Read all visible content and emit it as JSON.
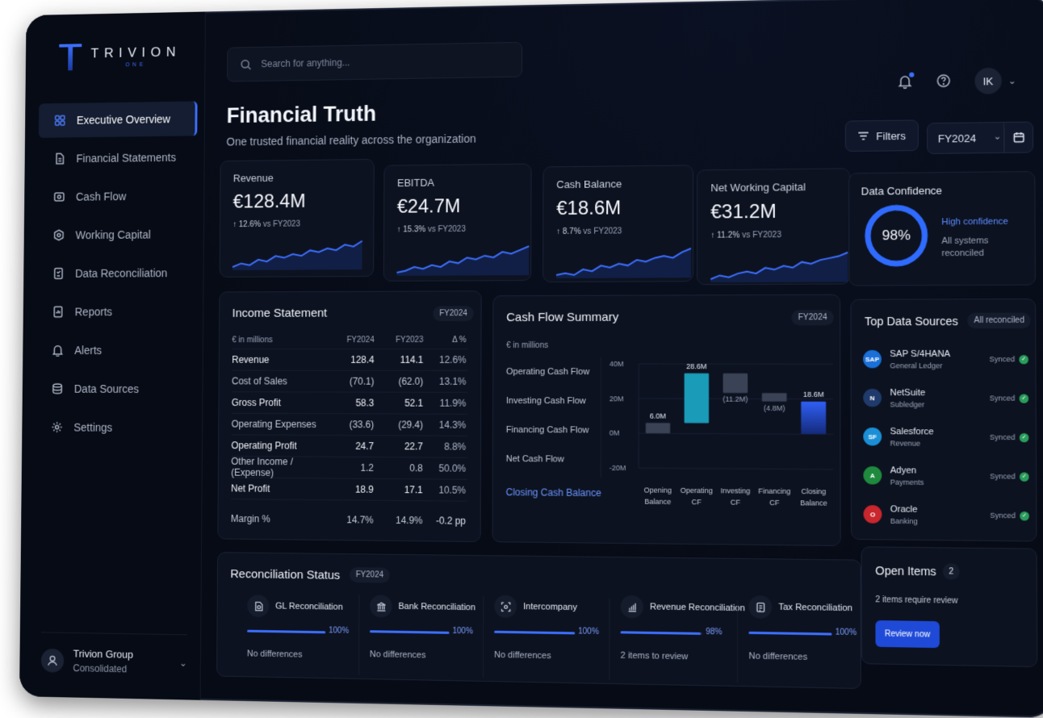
{
  "brand": {
    "name": "TRIVION",
    "sub": "ONE"
  },
  "nav": [
    {
      "label": "Executive Overview",
      "icon": "grid-icon",
      "active": true
    },
    {
      "label": "Financial Statements",
      "icon": "document-icon"
    },
    {
      "label": "Cash Flow",
      "icon": "cash-icon"
    },
    {
      "label": "Working Capital",
      "icon": "gear-circle-icon"
    },
    {
      "label": "Data Reconciliation",
      "icon": "reconcile-icon"
    },
    {
      "label": "Reports",
      "icon": "report-icon"
    },
    {
      "label": "Alerts",
      "icon": "bell-icon"
    },
    {
      "label": "Data Sources",
      "icon": "database-icon"
    },
    {
      "label": "Settings",
      "icon": "gear-icon"
    }
  ],
  "org": {
    "name": "Trivion Group",
    "sub": "Consolidated"
  },
  "search": {
    "placeholder": "Search for anything..."
  },
  "user": {
    "initials": "IK"
  },
  "header": {
    "title": "Financial Truth",
    "subtitle": "One trusted financial reality across the organization",
    "filters_label": "Filters",
    "fy_value": "FY2024"
  },
  "kpis": [
    {
      "label": "Revenue",
      "value": "€128.4M",
      "delta": "↑ 12.6%",
      "vs": "vs FY2023",
      "spark": [
        3,
        5,
        4,
        7,
        6,
        9,
        8,
        10,
        9,
        12,
        11,
        13,
        12,
        15,
        14,
        17
      ]
    },
    {
      "label": "EBITDA",
      "value": "€24.7M",
      "delta": "↑ 15.3%",
      "vs": "vs FY2023",
      "spark": [
        3,
        4,
        6,
        5,
        7,
        6,
        9,
        8,
        11,
        10,
        12,
        11,
        14,
        13,
        15,
        17
      ]
    },
    {
      "label": "Cash Balance",
      "value": "€18.6M",
      "delta": "↑ 8.7%",
      "vs": "vs FY2023",
      "spark": [
        3,
        4,
        3,
        6,
        5,
        8,
        7,
        9,
        8,
        11,
        10,
        12,
        13,
        12,
        15,
        17
      ]
    },
    {
      "label": "Net Working Capital",
      "value": "€31.2M",
      "delta": "↑ 11.2%",
      "vs": "vs FY2023",
      "spark": [
        3,
        5,
        4,
        6,
        7,
        6,
        9,
        8,
        10,
        9,
        12,
        11,
        13,
        14,
        15,
        17
      ]
    }
  ],
  "data_confidence": {
    "title": "Data Confidence",
    "percent": 98,
    "percent_label": "98%",
    "level": "High confidence",
    "note": "All systems reconciled"
  },
  "income_statement": {
    "title": "Income Statement",
    "period": "FY2024",
    "columns": [
      "€ in millions",
      "FY2024",
      "FY2023",
      "Δ %"
    ],
    "rows": [
      {
        "label": "Revenue",
        "fy24": "128.4",
        "fy23": "114.1",
        "delta": "12.6%",
        "bold": true
      },
      {
        "label": "Cost of Sales",
        "fy24": "(70.1)",
        "fy23": "(62.0)",
        "delta": "13.1%",
        "bold": false
      },
      {
        "label": "Gross Profit",
        "fy24": "58.3",
        "fy23": "52.1",
        "delta": "11.9%",
        "bold": true
      },
      {
        "label": "Operating Expenses",
        "fy24": "(33.6)",
        "fy23": "(29.4)",
        "delta": "14.3%",
        "bold": false
      },
      {
        "label": "Operating Profit",
        "fy24": "24.7",
        "fy23": "22.7",
        "delta": "8.8%",
        "bold": true
      },
      {
        "label": "Other Income / (Expense)",
        "fy24": "1.2",
        "fy23": "0.8",
        "delta": "50.0%",
        "bold": false
      },
      {
        "label": "Net Profit",
        "fy24": "18.9",
        "fy23": "17.1",
        "delta": "10.5%",
        "bold": true
      }
    ],
    "margin": {
      "label": "Margin %",
      "fy24": "14.7%",
      "fy23": "14.9%",
      "delta": "-0.2 pp"
    }
  },
  "cash_flow": {
    "title": "Cash Flow Summary",
    "period": "FY2024",
    "unit": "€ in millions",
    "labels": [
      "Operating Cash Flow",
      "Investing Cash Flow",
      "Financing Cash Flow",
      "Net Cash Flow"
    ],
    "closing_label": "Closing Cash Balance"
  },
  "chart_data": {
    "type": "bar",
    "subtype": "waterfall",
    "categories": [
      "Opening Balance",
      "Operating CF",
      "Investing CF",
      "Financing CF",
      "Closing Balance"
    ],
    "values": [
      6.0,
      28.6,
      -11.2,
      -4.8,
      18.6
    ],
    "value_labels": [
      "6.0M",
      "28.6M",
      "(11.2M)",
      "(4.8M)",
      "18.6M"
    ],
    "yticks": [
      "40M",
      "20M",
      "0M",
      "-20M"
    ],
    "ylim": [
      -20,
      40
    ],
    "colors": [
      "#3a4256",
      "#1a9bb8",
      "#3a4256",
      "#3a4256",
      "#2f5ff5"
    ]
  },
  "top_sources": {
    "title": "Top Data Sources",
    "badge": "All reconciled",
    "items": [
      {
        "name": "SAP S/4HANA",
        "sub": "General Ledger",
        "status": "Synced",
        "logo": "SAP",
        "color": "#1a6fd8"
      },
      {
        "name": "NetSuite",
        "sub": "Subledger",
        "status": "Synced",
        "logo": "N",
        "color": "#1f3a6b"
      },
      {
        "name": "Salesforce",
        "sub": "Revenue",
        "status": "Synced",
        "logo": "SF",
        "color": "#1b8fd6"
      },
      {
        "name": "Adyen",
        "sub": "Payments",
        "status": "Synced",
        "logo": "A",
        "color": "#1f8a3e"
      },
      {
        "name": "Oracle",
        "sub": "Banking",
        "status": "Synced",
        "logo": "O",
        "color": "#c9262d"
      }
    ]
  },
  "reconciliation": {
    "title": "Reconciliation Status",
    "period": "FY2024",
    "items": [
      {
        "name": "GL Reconciliation",
        "pct": "100%",
        "fill": 1.0,
        "note": "No differences",
        "icon": "gl-icon"
      },
      {
        "name": "Bank Reconciliation",
        "pct": "100%",
        "fill": 1.0,
        "note": "No differences",
        "icon": "bank-icon"
      },
      {
        "name": "Intercompany",
        "pct": "100%",
        "fill": 1.0,
        "note": "No differences",
        "icon": "intercompany-icon"
      },
      {
        "name": "Revenue Reconciliation",
        "pct": "98%",
        "fill": 0.98,
        "note": "2 items to review",
        "icon": "chart-icon"
      },
      {
        "name": "Tax Reconciliation",
        "pct": "100%",
        "fill": 1.0,
        "note": "No differences",
        "icon": "tax-icon"
      }
    ]
  },
  "open_items": {
    "title": "Open Items",
    "count": "2",
    "note": "2 items require review",
    "button": "Review now"
  }
}
